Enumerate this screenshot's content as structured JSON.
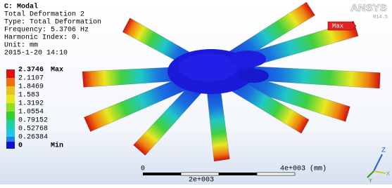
{
  "header": {
    "lines": [
      "C: Modal",
      "Total Deformation 2",
      "Type: Total Deformation",
      "Frequency: 5.3706 Hz",
      "Harmonic Index: 0.",
      "Unit: mm",
      "2015-1-20 14:10"
    ]
  },
  "legend": {
    "entries": [
      {
        "value": "2.3746",
        "tag": "Max"
      },
      {
        "value": "2.1107"
      },
      {
        "value": "1.8469"
      },
      {
        "value": "1.583"
      },
      {
        "value": "1.3192"
      },
      {
        "value": "1.0554"
      },
      {
        "value": "0.79152"
      },
      {
        "value": "0.52768"
      },
      {
        "value": "0.26384"
      },
      {
        "value": "0",
        "tag": "Min"
      }
    ]
  },
  "logo": {
    "brand": "ANSYS",
    "version": "R14.5"
  },
  "probe": {
    "label": "Max"
  },
  "scale_bar": {
    "start": "0",
    "end": "4e+003 (mm)",
    "mid": "2e+003"
  },
  "triad": {
    "z": "Z",
    "y": "Y",
    "x": "X"
  }
}
